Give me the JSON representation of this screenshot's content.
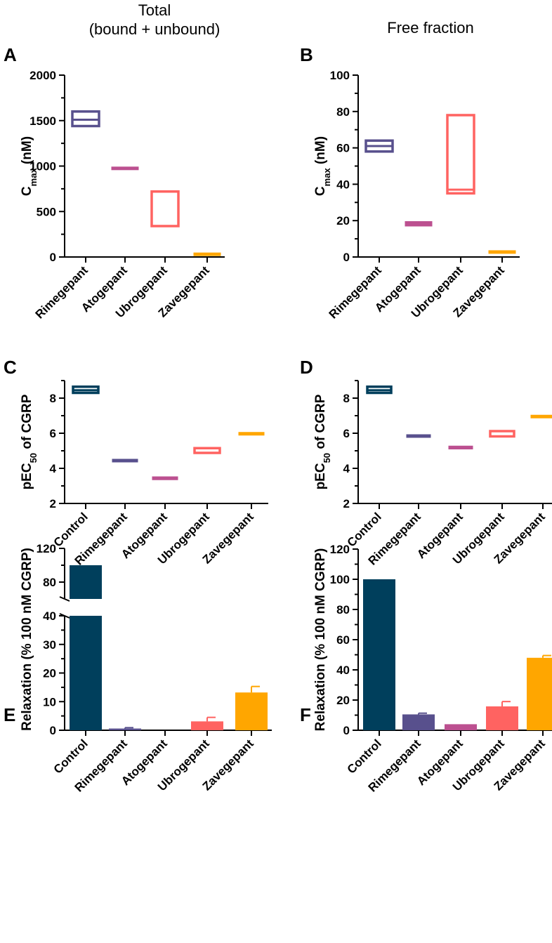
{
  "headers": {
    "left": [
      "Total",
      "(bound + unbound)"
    ],
    "right": "Free fraction"
  },
  "colors": {
    "control": "#003f5c",
    "rimegepant": "#58508d",
    "atogepant": "#bc5090",
    "ubrogepant": "#ff6361",
    "zavegepant": "#ffa600"
  },
  "chart_data": [
    {
      "panel": "A",
      "type": "floating-bar",
      "ylabel": "C",
      "ylabel_sub": "max",
      "ylabel_suffix": " (nM)",
      "ylim": [
        0,
        2000
      ],
      "yticks": [
        0,
        500,
        1000,
        1500,
        2000
      ],
      "categories": [
        "Rimegepant",
        "Atogepant",
        "Ubrogepant",
        "Zavegepant"
      ],
      "series_colors": [
        "rimegepant",
        "atogepant",
        "ubrogepant",
        "zavegepant"
      ],
      "ranges": [
        [
          1440,
          1600
        ],
        [
          960,
          990
        ],
        [
          340,
          720
        ],
        [
          20,
          45
        ]
      ],
      "midlines": [
        1510,
        null,
        null,
        null
      ],
      "hollow": [
        true,
        false,
        true,
        false
      ]
    },
    {
      "panel": "B",
      "type": "floating-bar",
      "ylabel": "C",
      "ylabel_sub": "max",
      "ylabel_suffix": " (nM)",
      "ylim": [
        0,
        100
      ],
      "yticks": [
        0,
        20,
        40,
        60,
        80,
        100
      ],
      "categories": [
        "Rimegepant",
        "Atogepant",
        "Ubrogepant",
        "Zavegepant"
      ],
      "series_colors": [
        "rimegepant",
        "atogepant",
        "ubrogepant",
        "zavegepant"
      ],
      "ranges": [
        [
          58,
          64
        ],
        [
          17,
          19.5
        ],
        [
          35,
          78
        ],
        [
          2,
          3.5
        ]
      ],
      "midlines": [
        61,
        null,
        37,
        null
      ],
      "hollow": [
        true,
        false,
        true,
        false
      ]
    },
    {
      "panel": "C",
      "type": "floating-bar",
      "ylabel": "pEC",
      "ylabel_sub": "50",
      "ylabel_suffix": " of CGRP",
      "ylim": [
        2,
        9
      ],
      "yticks": [
        2,
        4,
        6,
        8
      ],
      "categories": [
        "Control",
        "Rimegepant",
        "Atogepant",
        "Ubrogepant",
        "Zavegepant"
      ],
      "series_colors": [
        "control",
        "rimegepant",
        "atogepant",
        "ubrogepant",
        "zavegepant"
      ],
      "ranges": [
        [
          8.3,
          8.65
        ],
        [
          4.4,
          4.52
        ],
        [
          3.35,
          3.52
        ],
        [
          4.88,
          5.15
        ],
        [
          5.97,
          6.05
        ]
      ],
      "midlines": [
        8.45,
        null,
        null,
        null,
        null
      ],
      "hollow": [
        true,
        false,
        false,
        true,
        false
      ]
    },
    {
      "panel": "D",
      "type": "floating-bar",
      "ylabel": "pEC",
      "ylabel_sub": "50",
      "ylabel_suffix": " of CGRP",
      "ylim": [
        2,
        9
      ],
      "yticks": [
        2,
        4,
        6,
        8
      ],
      "categories": [
        "Control",
        "Rimegepant",
        "Atogepant",
        "Ubrogepant",
        "Zavegepant"
      ],
      "series_colors": [
        "control",
        "rimegepant",
        "atogepant",
        "ubrogepant",
        "zavegepant"
      ],
      "ranges": [
        [
          8.3,
          8.65
        ],
        [
          5.8,
          5.92
        ],
        [
          5.1,
          5.27
        ],
        [
          5.82,
          6.12
        ],
        [
          6.95,
          7.03
        ]
      ],
      "midlines": [
        8.45,
        null,
        null,
        null,
        null
      ],
      "hollow": [
        true,
        false,
        false,
        true,
        false
      ]
    },
    {
      "panel": "E",
      "type": "bar",
      "ylabel": "Relaxation (% 100 nM CGRP)",
      "broken_axis": true,
      "lower_ylim": [
        0,
        40
      ],
      "lower_yticks": [
        0,
        10,
        20,
        30,
        40
      ],
      "upper_ylim": [
        60,
        120
      ],
      "upper_yticks": [
        80,
        120
      ],
      "categories": [
        "Control",
        "Rimegepant",
        "Atogepant",
        "Ubrogepant",
        "Zavegepant"
      ],
      "series_colors": [
        "control",
        "rimegepant",
        "atogepant",
        "ubrogepant",
        "zavegepant"
      ],
      "values": [
        100,
        0.6,
        0,
        3.1,
        13.2
      ],
      "errors": [
        0,
        0.3,
        0,
        1.4,
        2.1
      ]
    },
    {
      "panel": "F",
      "type": "bar",
      "ylabel": "Relaxation (% 100 nM CGRP)",
      "ylim": [
        0,
        120
      ],
      "yticks": [
        0,
        20,
        40,
        60,
        80,
        100,
        120
      ],
      "categories": [
        "Control",
        "Rimegepant",
        "Atogepant",
        "Ubrogepant",
        "Zavegepant"
      ],
      "series_colors": [
        "control",
        "rimegepant",
        "atogepant",
        "ubrogepant",
        "zavegepant"
      ],
      "values": [
        100,
        10.5,
        4,
        15.8,
        48
      ],
      "errors": [
        0,
        0.8,
        0,
        3.2,
        1.5
      ]
    }
  ]
}
